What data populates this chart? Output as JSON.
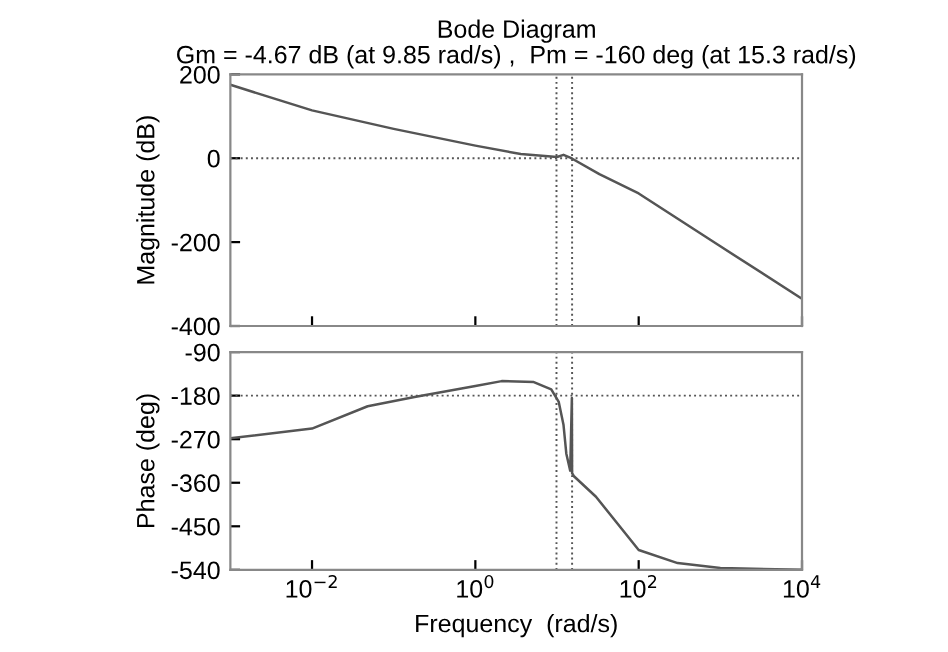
{
  "chart_data": [
    {
      "type": "line",
      "title": "Bode Diagram",
      "subtitle": "Gm = -4.67 dB (at 9.85 rad/s) ,  Pm = -160 deg (at 15.3 rad/s)",
      "ylabel": "Magnitude (dB)",
      "series": [
        {
          "color": "#555555",
          "x": [
            0.001,
            0.01,
            0.1,
            1,
            3.6,
            10,
            12,
            15,
            33,
            100,
            1000,
            10000
          ],
          "values": [
            175,
            114,
            70,
            30,
            10,
            3,
            8,
            0,
            -38,
            -84,
            -210,
            -335
          ]
        }
      ],
      "xlim": [
        0.001,
        10000
      ],
      "ylim": [
        -400,
        200
      ],
      "yticks": [
        -400,
        -200,
        0,
        200
      ],
      "log": "x",
      "tick_labels": "y",
      "grid": false,
      "ref_lines": [
        {
          "axis": "y",
          "value": 0,
          "line_style": "dotted"
        },
        {
          "axis": "x",
          "value": 9.85,
          "line_style": "dotted"
        },
        {
          "axis": "x",
          "value": 15.3,
          "line_style": "dotted"
        }
      ]
    },
    {
      "type": "line",
      "xlabel": "Frequency  (rad/s)",
      "ylabel": "Phase (deg)",
      "series": [
        {
          "color": "#555555",
          "x": [
            0.001,
            0.01,
            0.048,
            0.18,
            1,
            2.1,
            5.2,
            8.5,
            10.5,
            12,
            13,
            14.5,
            15.2,
            15.3,
            16,
            30,
            100,
            300,
            1000,
            10000
          ],
          "values": [
            -268,
            -248,
            -202,
            -183,
            -160,
            -150,
            -152,
            -167,
            -193,
            -240,
            -300,
            -335,
            -185,
            -340,
            -346,
            -389,
            -499,
            -526,
            -536,
            -540
          ]
        }
      ],
      "xlim": [
        0.001,
        10000
      ],
      "xticks": [
        {
          "value": 0.01,
          "label": "10$^{−2}$"
        },
        {
          "value": 1,
          "label": "10$^{0}$"
        },
        {
          "value": 100,
          "label": "10$^{2}$"
        },
        {
          "value": 10000,
          "label": "10$^{4}$"
        }
      ],
      "ylim": [
        -540,
        -90
      ],
      "yticks": [
        -540,
        -450,
        -360,
        -270,
        -180,
        -90
      ],
      "log": "x",
      "grid": false,
      "ref_lines": [
        {
          "axis": "y",
          "value": -180,
          "line_style": "dotted"
        },
        {
          "axis": "x",
          "value": 9.85,
          "line_style": "dotted"
        },
        {
          "axis": "x",
          "value": 15.3,
          "line_style": "dotted"
        }
      ]
    }
  ]
}
